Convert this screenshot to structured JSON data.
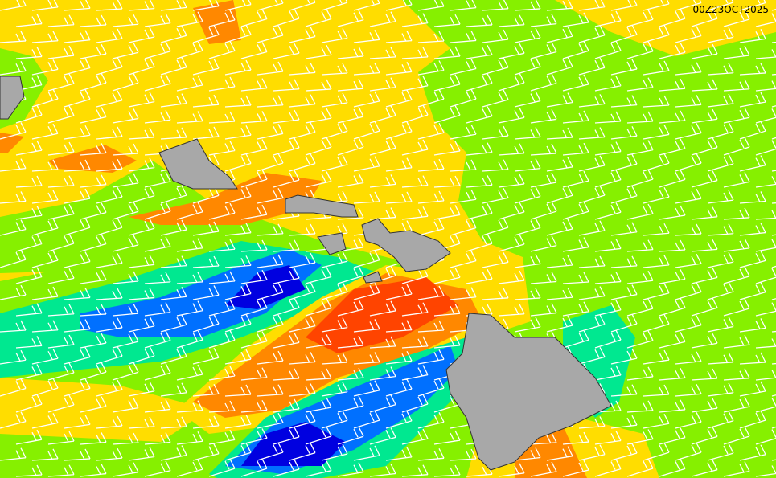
{
  "timestamp": "00Z23OCT2025"
}
